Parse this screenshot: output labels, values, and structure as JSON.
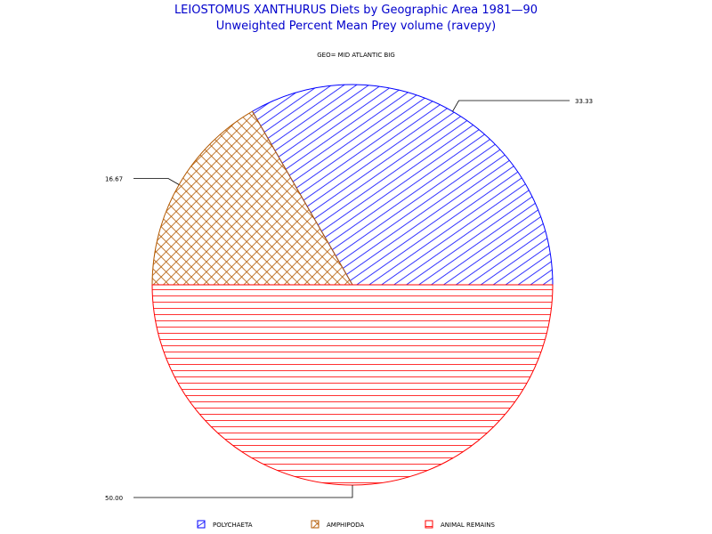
{
  "titles": {
    "line1": "LEIOSTOMUS XANTHURUS Diets by Geographic Area 1981—90",
    "line2": "Unweighted Percent Mean Prey volume (ravepy)",
    "subtitle": "GEO= MID ATLANTIC BIG"
  },
  "chart_data": {
    "type": "pie",
    "title": "LEIOSTOMUS XANTHURUS Diets by Geographic Area 1981—90",
    "subtitle": "Unweighted Percent Mean Prey volume (ravepy)",
    "group_label": "GEO= MID ATLANTIC BIG",
    "slices": [
      {
        "name": "POLYCHAETA",
        "value": 33.33,
        "label": "33.33",
        "color": "#0000ff",
        "pattern": "diagonal"
      },
      {
        "name": "AMPHIPODA",
        "value": 16.67,
        "label": "16.67",
        "color": "#b35900",
        "pattern": "crosshatch"
      },
      {
        "name": "ANIMAL REMAINS",
        "value": 50.0,
        "label": "50.00",
        "color": "#ff0000",
        "pattern": "horizontal"
      }
    ],
    "legend_position": "bottom"
  }
}
